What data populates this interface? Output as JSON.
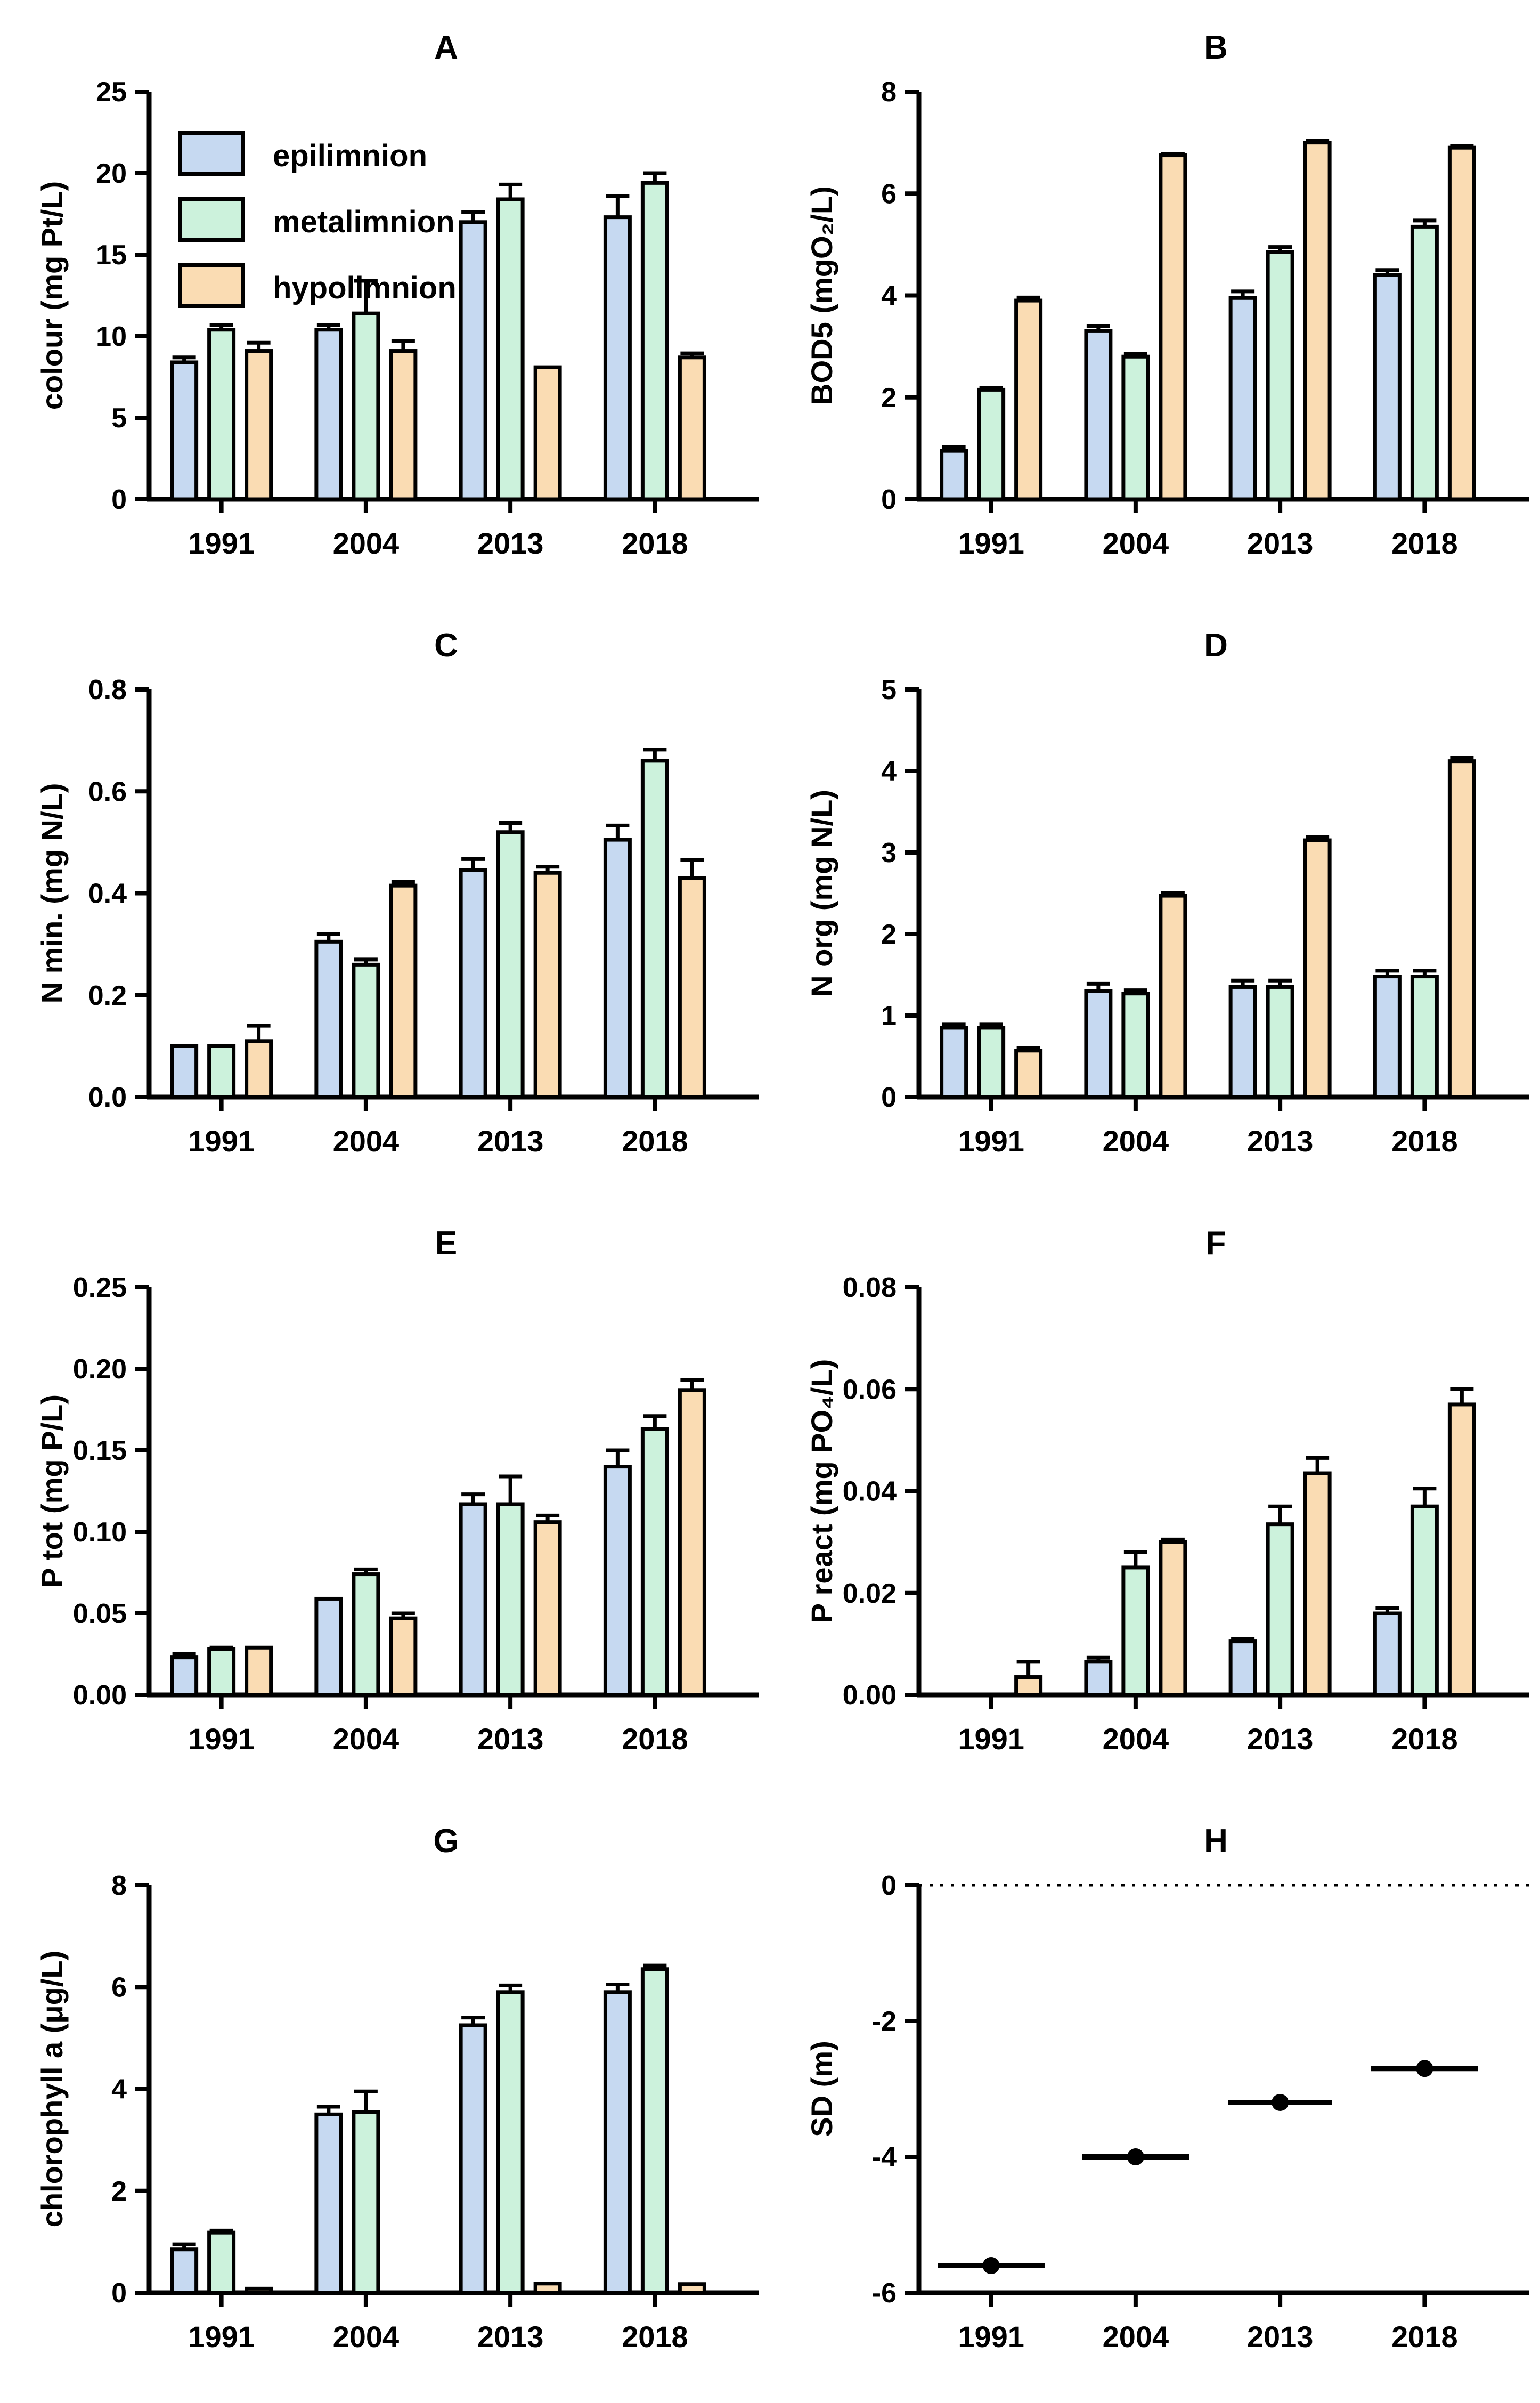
{
  "figure": {
    "background": "#ffffff",
    "categories": [
      "1991",
      "2004",
      "2013",
      "2018"
    ],
    "legend": {
      "position": "top-left-panel-A",
      "items": [
        {
          "label": "epilimnion",
          "color": "#c6d9f1"
        },
        {
          "label": "metalimnion",
          "color": "#ccf2dc"
        },
        {
          "label": "hypolimnion",
          "color": "#fadcb3"
        }
      ]
    },
    "line_color": "#000000"
  },
  "chart_data": [
    {
      "id": "A",
      "title": "A",
      "type": "bar",
      "legend": true,
      "ylabel": "colour (mg Pt/L)",
      "ylim": [
        0,
        25
      ],
      "grid": false,
      "tick_values": [
        0,
        5,
        10,
        15,
        20,
        25
      ],
      "tick_labels": [
        "0",
        "5",
        "10",
        "15",
        "20",
        "25"
      ],
      "categories": [
        "1991",
        "2004",
        "2013",
        "2018"
      ],
      "series": [
        {
          "name": "epilimnion",
          "values": [
            8.4,
            10.4,
            17.0,
            17.3
          ],
          "errors": [
            0.3,
            0.3,
            0.6,
            1.3
          ]
        },
        {
          "name": "metalimnion",
          "values": [
            10.4,
            11.4,
            18.4,
            19.4
          ],
          "errors": [
            0.3,
            2.0,
            0.9,
            0.6
          ]
        },
        {
          "name": "hypolimnion",
          "values": [
            9.1,
            9.1,
            8.1,
            8.7
          ],
          "errors": [
            0.5,
            0.6,
            0,
            0.25
          ]
        }
      ]
    },
    {
      "id": "B",
      "title": "B",
      "type": "bar",
      "legend": false,
      "ylabel": "BOD5 (mgO₂/L)",
      "ylim": [
        0,
        8
      ],
      "grid": false,
      "tick_values": [
        0,
        2,
        4,
        6,
        8
      ],
      "tick_labels": [
        "0",
        "2",
        "4",
        "6",
        "8"
      ],
      "categories": [
        "1991",
        "2004",
        "2013",
        "2018"
      ],
      "series": [
        {
          "name": "epilimnion",
          "values": [
            0.95,
            3.3,
            3.95,
            4.4
          ],
          "errors": [
            0.07,
            0.1,
            0.13,
            0.1
          ]
        },
        {
          "name": "metalimnion",
          "values": [
            2.15,
            2.8,
            4.85,
            5.35
          ],
          "errors": [
            0.03,
            0.05,
            0.1,
            0.12
          ]
        },
        {
          "name": "hypolimnion",
          "values": [
            3.9,
            6.75,
            7.0,
            6.9
          ],
          "errors": [
            0.06,
            0.03,
            0.04,
            0.03
          ]
        }
      ]
    },
    {
      "id": "C",
      "title": "C",
      "type": "bar",
      "legend": false,
      "ylabel": "N min. (mg N/L)",
      "ylim": [
        0,
        0.8
      ],
      "grid": false,
      "tick_values": [
        0,
        0.2,
        0.4,
        0.6,
        0.8
      ],
      "tick_labels": [
        "0.0",
        "0.2",
        "0.4",
        "0.6",
        "0.8"
      ],
      "categories": [
        "1991",
        "2004",
        "2013",
        "2018"
      ],
      "series": [
        {
          "name": "epilimnion",
          "values": [
            0.1,
            0.305,
            0.445,
            0.505
          ],
          "errors": [
            0,
            0.015,
            0.022,
            0.028
          ]
        },
        {
          "name": "metalimnion",
          "values": [
            0.1,
            0.26,
            0.52,
            0.66
          ],
          "errors": [
            0,
            0.01,
            0.018,
            0.022
          ]
        },
        {
          "name": "hypolimnion",
          "values": [
            0.11,
            0.415,
            0.44,
            0.43
          ],
          "errors": [
            0.03,
            0.007,
            0.012,
            0.035
          ]
        }
      ]
    },
    {
      "id": "D",
      "title": "D",
      "type": "bar",
      "legend": false,
      "ylabel": "N org (mg N/L)",
      "ylim": [
        0,
        5
      ],
      "grid": false,
      "tick_values": [
        0,
        1,
        2,
        3,
        4,
        5
      ],
      "tick_labels": [
        "0",
        "1",
        "2",
        "3",
        "4",
        "5"
      ],
      "categories": [
        "1991",
        "2004",
        "2013",
        "2018"
      ],
      "series": [
        {
          "name": "epilimnion",
          "values": [
            0.85,
            1.3,
            1.35,
            1.48
          ],
          "errors": [
            0.04,
            0.09,
            0.08,
            0.07
          ]
        },
        {
          "name": "metalimnion",
          "values": [
            0.85,
            1.27,
            1.35,
            1.48
          ],
          "errors": [
            0.04,
            0.04,
            0.08,
            0.07
          ]
        },
        {
          "name": "hypolimnion",
          "values": [
            0.57,
            2.47,
            3.15,
            4.12
          ],
          "errors": [
            0.03,
            0.03,
            0.04,
            0.04
          ]
        }
      ]
    },
    {
      "id": "E",
      "title": "E",
      "type": "bar",
      "legend": false,
      "ylabel": "P tot (mg P/L)",
      "ylim": [
        0,
        0.25
      ],
      "grid": false,
      "tick_values": [
        0,
        0.05,
        0.1,
        0.15,
        0.2,
        0.25
      ],
      "tick_labels": [
        "0.00",
        "0.05",
        "0.10",
        "0.15",
        "0.20",
        "0.25"
      ],
      "categories": [
        "1991",
        "2004",
        "2013",
        "2018"
      ],
      "series": [
        {
          "name": "epilimnion",
          "values": [
            0.023,
            0.059,
            0.117,
            0.14
          ],
          "errors": [
            0.002,
            0,
            0.006,
            0.01
          ]
        },
        {
          "name": "metalimnion",
          "values": [
            0.028,
            0.074,
            0.117,
            0.163
          ],
          "errors": [
            0.001,
            0.003,
            0.017,
            0.008
          ]
        },
        {
          "name": "hypolimnion",
          "values": [
            0.029,
            0.047,
            0.106,
            0.187
          ],
          "errors": [
            0,
            0.003,
            0.004,
            0.006
          ]
        }
      ]
    },
    {
      "id": "F",
      "title": "F",
      "type": "bar",
      "legend": false,
      "ylabel": "P react (mg PO₄/L)",
      "ylim": [
        0,
        0.08
      ],
      "grid": false,
      "tick_values": [
        0,
        0.02,
        0.04,
        0.06,
        0.08
      ],
      "tick_labels": [
        "0.00",
        "0.02",
        "0.04",
        "0.06",
        "0.08"
      ],
      "categories": [
        "1991",
        "2004",
        "2013",
        "2018"
      ],
      "series": [
        {
          "name": "epilimnion",
          "values": [
            0,
            0.0065,
            0.0105,
            0.016
          ],
          "errors": [
            0,
            0.0008,
            0.0005,
            0.001
          ]
        },
        {
          "name": "metalimnion",
          "values": [
            0,
            0.025,
            0.0335,
            0.037
          ],
          "errors": [
            0,
            0.003,
            0.0035,
            0.0035
          ]
        },
        {
          "name": "hypolimnion",
          "values": [
            0.0035,
            0.03,
            0.0435,
            0.057
          ],
          "errors": [
            0.003,
            0.0005,
            0.003,
            0.003
          ]
        }
      ]
    },
    {
      "id": "G",
      "title": "G",
      "type": "bar",
      "legend": false,
      "ylabel": "chlorophyll a (μg/L)",
      "ylim": [
        0,
        8
      ],
      "grid": false,
      "tick_values": [
        0,
        2,
        4,
        6,
        8
      ],
      "tick_labels": [
        "0",
        "2",
        "4",
        "6",
        "8"
      ],
      "categories": [
        "1991",
        "2004",
        "2013",
        "2018"
      ],
      "series": [
        {
          "name": "epilimnion",
          "values": [
            0.85,
            3.5,
            5.25,
            5.9
          ],
          "errors": [
            0.1,
            0.15,
            0.15,
            0.15
          ]
        },
        {
          "name": "metalimnion",
          "values": [
            1.18,
            3.55,
            5.9,
            6.35
          ],
          "errors": [
            0.04,
            0.4,
            0.13,
            0.07
          ]
        },
        {
          "name": "hypolimnion",
          "values": [
            0.08,
            0,
            0.18,
            0.17
          ],
          "errors": [
            0,
            0,
            0,
            0
          ]
        }
      ]
    },
    {
      "id": "H",
      "title": "H",
      "type": "scatter",
      "legend": false,
      "ylabel": "SD (m)",
      "ylim": [
        -6,
        0
      ],
      "grid": false,
      "zero_line_dotted": true,
      "tick_values": [
        0,
        -2,
        -4,
        -6
      ],
      "tick_labels": [
        "0",
        "-2",
        "-4",
        "-6"
      ],
      "categories": [
        "1991",
        "2004",
        "2013",
        "2018"
      ],
      "points": [
        {
          "x": "1991",
          "y": -5.6,
          "xerr_frac": 0.37
        },
        {
          "x": "2004",
          "y": -4.0,
          "xerr_frac": 0.37
        },
        {
          "x": "2013",
          "y": -3.2,
          "xerr_frac": 0.36
        },
        {
          "x": "2018",
          "y": -2.7,
          "xerr_frac": 0.37
        }
      ]
    }
  ]
}
